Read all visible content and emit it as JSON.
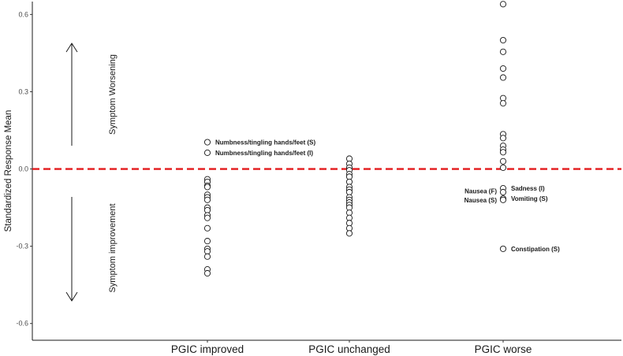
{
  "chart_data": {
    "type": "scatter",
    "ylabel": "Standardized Response Mean",
    "ylim": [
      -0.665,
      0.65
    ],
    "y_ticks": [
      0.6,
      0.3,
      0.0,
      -0.3,
      -0.6
    ],
    "y_tick_labels": [
      "0.6",
      "0.3",
      "0.0",
      "-0.3",
      "-0.6"
    ],
    "categories": [
      "PGIC improved",
      "PGIC unchanged",
      "PGIC worse"
    ],
    "reference_line": {
      "y": 0.0,
      "color": "#e31a1c",
      "style": "dashed"
    },
    "arrows": [
      {
        "label": "Symptom Worsening",
        "direction": "up"
      },
      {
        "label": "Symptom improvement",
        "direction": "down"
      }
    ],
    "points": [
      [
        0.104,
        0.063,
        -0.04,
        -0.05,
        -0.065,
        -0.07,
        -0.1,
        -0.11,
        -0.12,
        -0.15,
        -0.16,
        -0.18,
        -0.19,
        -0.23,
        -0.28,
        -0.31,
        -0.32,
        -0.34,
        -0.39,
        -0.405
      ],
      [
        0.04,
        0.02,
        0.005,
        -0.005,
        -0.02,
        -0.03,
        -0.05,
        -0.07,
        -0.08,
        -0.09,
        -0.11,
        -0.12,
        -0.13,
        -0.14,
        -0.15,
        -0.17,
        -0.19,
        -0.21,
        -0.23,
        -0.25
      ],
      [
        0.64,
        0.5,
        0.455,
        0.39,
        0.355,
        0.275,
        0.255,
        0.135,
        0.12,
        0.09,
        0.075,
        0.065,
        0.03,
        0.005,
        -0.075,
        -0.09,
        -0.115,
        -0.12,
        -0.31
      ]
    ],
    "annotations": [
      {
        "category": 0,
        "y": 0.104,
        "text": "Numbness/tingling hands/feet (S)",
        "side": "right"
      },
      {
        "category": 0,
        "y": 0.063,
        "text": "Numbness/tingling hands/feet (I)",
        "side": "right"
      },
      {
        "category": 2,
        "y": -0.075,
        "text": "Sadness (I)",
        "side": "right"
      },
      {
        "category": 2,
        "y": -0.085,
        "text": "Nausea (F)",
        "side": "left"
      },
      {
        "category": 2,
        "y": -0.115,
        "text": "Vomiting (S)",
        "side": "right"
      },
      {
        "category": 2,
        "y": -0.12,
        "text": "Nausea (S)",
        "side": "left"
      },
      {
        "category": 2,
        "y": -0.31,
        "text": "Constipation (S)",
        "side": "right"
      }
    ],
    "grid": false,
    "legend": "none"
  }
}
